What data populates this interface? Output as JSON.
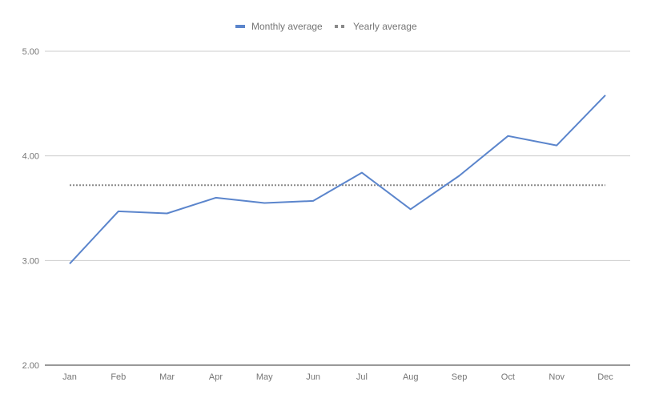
{
  "chart_data": {
    "type": "line",
    "categories": [
      "Jan",
      "Feb",
      "Mar",
      "Apr",
      "May",
      "Jun",
      "Jul",
      "Aug",
      "Sep",
      "Oct",
      "Nov",
      "Dec"
    ],
    "series": [
      {
        "name": "Monthly average",
        "values": [
          2.97,
          3.47,
          3.45,
          3.6,
          3.55,
          3.57,
          3.84,
          3.49,
          3.81,
          4.19,
          4.1,
          4.58
        ],
        "color": "#5b85cc",
        "style": "solid"
      },
      {
        "name": "Yearly average",
        "values": [
          3.72,
          3.72,
          3.72,
          3.72,
          3.72,
          3.72,
          3.72,
          3.72,
          3.72,
          3.72,
          3.72,
          3.72
        ],
        "color": "#8a8a8a",
        "style": "dotted"
      }
    ],
    "yticks": [
      "2.00",
      "3.00",
      "4.00",
      "5.00"
    ],
    "ylim": [
      2,
      5
    ],
    "legend_position": "top-center",
    "grid": true
  }
}
